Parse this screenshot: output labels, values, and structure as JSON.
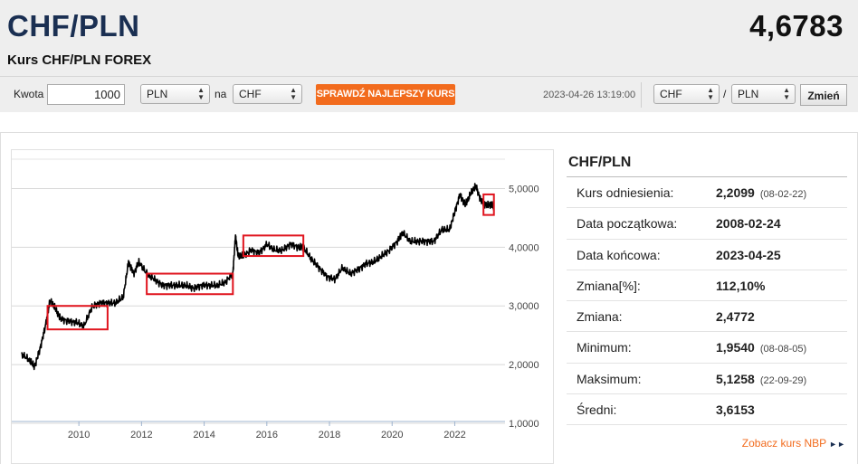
{
  "header": {
    "pair": "CHF/PLN",
    "rate": "4,6783",
    "subtitle": "Kurs CHF/PLN FOREX"
  },
  "toolbar": {
    "amount_label": "Kwota",
    "amount_value": "1000",
    "from_currency": "PLN",
    "to_label": "na",
    "to_currency": "CHF",
    "best_rate_button": "SPRAWDŹ NAJLEPSZY KURS",
    "datetime": "2023-04-26 13:19:00",
    "pair_base": "CHF",
    "pair_sep": "/",
    "pair_quote": "PLN",
    "change_button": "Zmień"
  },
  "info": {
    "title": "CHF/PLN",
    "rows": [
      {
        "label": "Kurs odniesienia:",
        "value": "2,2099",
        "date": "(08-02-22)"
      },
      {
        "label": "Data początkowa:",
        "value": "2008-02-24",
        "date": ""
      },
      {
        "label": "Data końcowa:",
        "value": "2023-04-25",
        "date": ""
      },
      {
        "label": "Zmiana[%]:",
        "value": "112,10%",
        "date": ""
      },
      {
        "label": "Zmiana:",
        "value": "2,4772",
        "date": ""
      },
      {
        "label": "Minimum:",
        "value": "1,9540",
        "date": "(08-08-05)"
      },
      {
        "label": "Maksimum:",
        "value": "5,1258",
        "date": "(22-09-29)"
      },
      {
        "label": "Średni:",
        "value": "3,6153",
        "date": ""
      }
    ],
    "nbp_link": "Zobacz kurs NBP"
  },
  "colors": {
    "accent": "#f26b1d",
    "title": "#1a2f52",
    "highlight_box": "#e0141e",
    "line": "#000000"
  },
  "chart_data": {
    "type": "line",
    "title": "",
    "xlabel": "",
    "ylabel": "",
    "xlim": [
      "2008-02-24",
      "2023-04-25"
    ],
    "ylim": [
      1.0,
      5.5
    ],
    "x_ticks": [
      "2010",
      "2012",
      "2014",
      "2016",
      "2018",
      "2020",
      "2022"
    ],
    "y_ticks": [
      "1,0000",
      "2,0000",
      "3,0000",
      "4,0000",
      "5,0000"
    ],
    "grid": "horizontal",
    "series": [
      {
        "x": [
          "2008-03",
          "2008-06",
          "2008-08",
          "2008-10",
          "2008-12",
          "2009-02",
          "2009-04",
          "2009-06",
          "2009-09",
          "2009-12",
          "2010-03",
          "2010-06",
          "2010-09",
          "2010-12",
          "2011-03",
          "2011-06",
          "2011-08",
          "2011-10",
          "2011-12",
          "2012-03",
          "2012-06",
          "2012-09",
          "2012-12",
          "2013-03",
          "2013-06",
          "2013-09",
          "2013-12",
          "2014-03",
          "2014-06",
          "2014-09",
          "2014-12",
          "2015-01",
          "2015-02",
          "2015-04",
          "2015-07",
          "2015-10",
          "2016-01",
          "2016-04",
          "2016-07",
          "2016-10",
          "2017-01",
          "2017-03",
          "2017-06",
          "2017-09",
          "2017-12",
          "2018-03",
          "2018-06",
          "2018-09",
          "2018-12",
          "2019-03",
          "2019-06",
          "2019-09",
          "2019-12",
          "2020-03",
          "2020-05",
          "2020-08",
          "2020-11",
          "2021-02",
          "2021-05",
          "2021-08",
          "2021-11",
          "2022-01",
          "2022-03",
          "2022-05",
          "2022-07",
          "2022-09",
          "2022-11",
          "2023-01",
          "2023-03",
          "2023-04"
        ],
        "y": [
          2.18,
          2.08,
          1.96,
          2.25,
          2.62,
          3.1,
          2.95,
          2.78,
          2.74,
          2.72,
          2.66,
          2.98,
          3.05,
          3.05,
          3.05,
          3.15,
          3.75,
          3.55,
          3.75,
          3.55,
          3.45,
          3.35,
          3.35,
          3.35,
          3.35,
          3.3,
          3.35,
          3.35,
          3.35,
          3.4,
          3.55,
          4.2,
          3.85,
          3.85,
          3.95,
          3.9,
          4.05,
          3.95,
          3.95,
          4.05,
          4.0,
          4.0,
          3.8,
          3.65,
          3.5,
          3.45,
          3.65,
          3.55,
          3.62,
          3.72,
          3.75,
          3.85,
          3.95,
          4.1,
          4.25,
          4.1,
          4.1,
          4.1,
          4.1,
          4.3,
          4.3,
          4.6,
          4.9,
          4.72,
          4.9,
          5.05,
          4.8,
          4.72,
          4.72,
          4.68
        ]
      }
    ],
    "annotations": [
      {
        "type": "box",
        "x0": "2009-01",
        "x1": "2010-12",
        "y0": 2.6,
        "y1": 3.0
      },
      {
        "type": "box",
        "x0": "2012-03",
        "x1": "2014-12",
        "y0": 3.2,
        "y1": 3.55
      },
      {
        "type": "box",
        "x0": "2015-04",
        "x1": "2017-03",
        "y0": 3.85,
        "y1": 4.2
      },
      {
        "type": "box",
        "x0": "2022-12",
        "x1": "2023-04",
        "y0": 4.55,
        "y1": 4.9
      }
    ]
  }
}
